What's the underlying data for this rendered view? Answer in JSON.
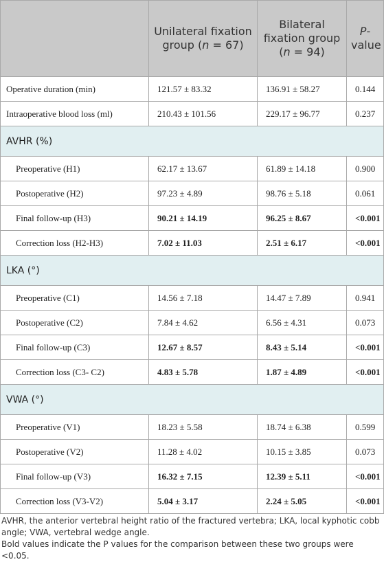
{
  "header": {
    "columns": [
      [
        "Unilateral fixation group (",
        "n",
        " = 67)"
      ],
      [
        "Bilateral fixation group (",
        "n",
        " = 94)"
      ],
      [
        "P",
        "-value"
      ]
    ]
  },
  "rows": [
    {
      "kind": "row",
      "label": "Operative duration (min)",
      "cells": [
        "121.57 ± 83.32",
        "136.91 ± 58.27",
        "0.144"
      ]
    },
    {
      "kind": "row",
      "label": "Intraoperative blood loss (ml)",
      "cells": [
        "210.43 ± 101.56",
        "229.17 ± 96.77",
        "0.237"
      ]
    },
    {
      "kind": "section",
      "label": "AVHR (%)"
    },
    {
      "kind": "sub",
      "label": "Preoperative (H1)",
      "cells": [
        "62.17 ± 13.67",
        "61.89 ± 14.18",
        "0.900"
      ]
    },
    {
      "kind": "sub",
      "label": "Postoperative (H2)",
      "cells": [
        "97.23 ± 4.89",
        "98.76 ± 5.18",
        "0.061"
      ]
    },
    {
      "kind": "sub",
      "label": "Final follow-up (H3)",
      "cells": [
        "90.21 ± 14.19",
        "96.25 ± 8.67",
        "<0.001"
      ],
      "bold": true
    },
    {
      "kind": "sub",
      "label": "Correction loss (H2-H3)",
      "cells": [
        "7.02 ± 11.03",
        "2.51 ± 6.17",
        "<0.001"
      ],
      "bold": true
    },
    {
      "kind": "section",
      "label": "LKA (°)"
    },
    {
      "kind": "sub",
      "label": "Preoperative (C1)",
      "cells": [
        "14.56 ± 7.18",
        "14.47 ± 7.89",
        "0.941"
      ]
    },
    {
      "kind": "sub",
      "label": "Postoperative (C2)",
      "cells": [
        "7.84 ± 4.62",
        "6.56 ± 4.31",
        "0.073"
      ]
    },
    {
      "kind": "sub",
      "label": "Final follow-up (C3)",
      "cells": [
        "12.67 ± 8.57",
        "8.43 ± 5.14",
        "<0.001"
      ],
      "bold": true
    },
    {
      "kind": "sub",
      "label": "Correction loss (C3- C2)",
      "cells": [
        "4.83 ± 5.78",
        "1.87 ± 4.89",
        "<0.001"
      ],
      "bold": true
    },
    {
      "kind": "section",
      "label": "VWA (°)"
    },
    {
      "kind": "sub",
      "label": "Preoperative (V1)",
      "cells": [
        "18.23 ± 5.58",
        "18.74 ± 6.38",
        "0.599"
      ]
    },
    {
      "kind": "sub",
      "label": "Postoperative (V2)",
      "cells": [
        "11.28 ± 4.02",
        "10.15 ± 3.85",
        "0.073"
      ]
    },
    {
      "kind": "sub",
      "label": "Final follow-up (V3)",
      "cells": [
        "16.32 ± 7.15",
        "12.39 ± 5.11",
        "<0.001"
      ],
      "bold": true
    },
    {
      "kind": "sub",
      "label": "Correction loss (V3-V2)",
      "cells": [
        "5.04 ± 3.17",
        "2.24 ± 5.05",
        "<0.001"
      ],
      "bold": true
    }
  ],
  "notes": [
    "AVHR, the anterior vertebral height ratio of the fractured vertebra; LKA, local kyphotic cobb angle; VWA, vertebral wedge angle.",
    "Bold values indicate the P values for the comparison between these two groups were <0.05."
  ]
}
